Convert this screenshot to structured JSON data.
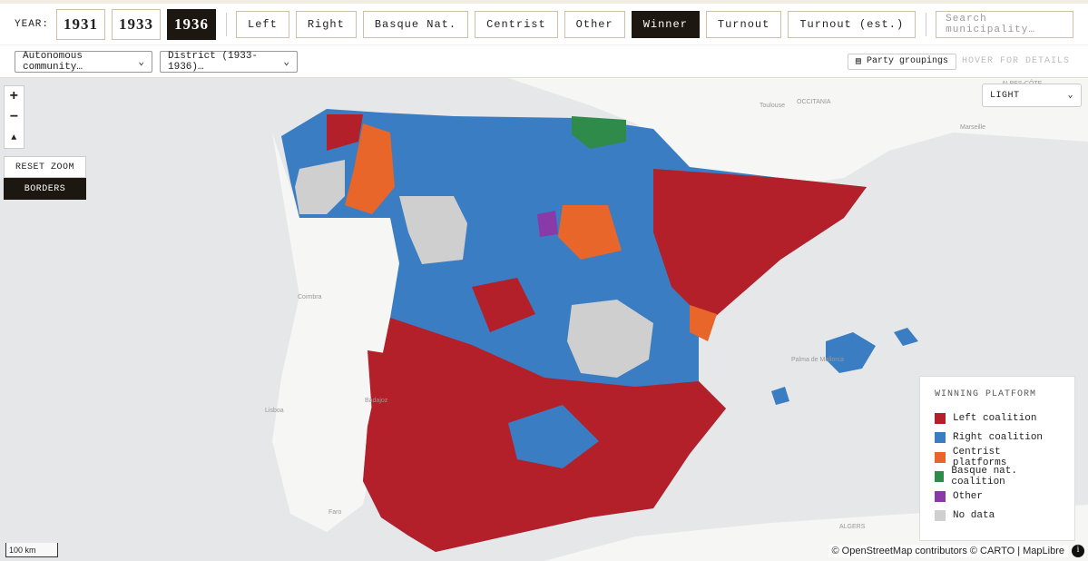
{
  "toolbar": {
    "year_label": "YEAR:",
    "years": [
      "1931",
      "1933",
      "1936"
    ],
    "modes": [
      "Left",
      "Right",
      "Basque Nat.",
      "Centrist",
      "Other",
      "Winner",
      "Turnout",
      "Turnout (est.)"
    ],
    "search_placeholder": "Search municipality…"
  },
  "filters": {
    "community": "Autonomous community…",
    "district": "District (1933-1936)…",
    "party_groupings": "Party groupings",
    "hover_hint": "HOVER FOR DETAILS"
  },
  "map_controls": {
    "zoom_in": "+",
    "zoom_out": "−",
    "reset_zoom": "RESET ZOOM",
    "borders": "BORDERS",
    "style": "LIGHT"
  },
  "map_labels": [
    "OCCITANIA",
    "Toulouse",
    "Marseille",
    "Coimbra",
    "Lisboa",
    "Badajoz",
    "Faro",
    "Palma de Mallorca",
    "ALGERS",
    "ALPES-CÔTE"
  ],
  "legend": {
    "title": "WINNING PLATFORM",
    "items": [
      {
        "label": "Left coalition",
        "color": "#b3202a"
      },
      {
        "label": "Right coalition",
        "color": "#3a7dc2"
      },
      {
        "label": "Centrist platforms",
        "color": "#e8662a"
      },
      {
        "label": "Basque nat. coalition",
        "color": "#2e8b4a"
      },
      {
        "label": "Other",
        "color": "#8a3aa8"
      },
      {
        "label": "No data",
        "color": "#cfcfcf"
      }
    ]
  },
  "scale_bar": "100 km",
  "attribution": "© OpenStreetMap contributors © CARTO | MapLibre"
}
